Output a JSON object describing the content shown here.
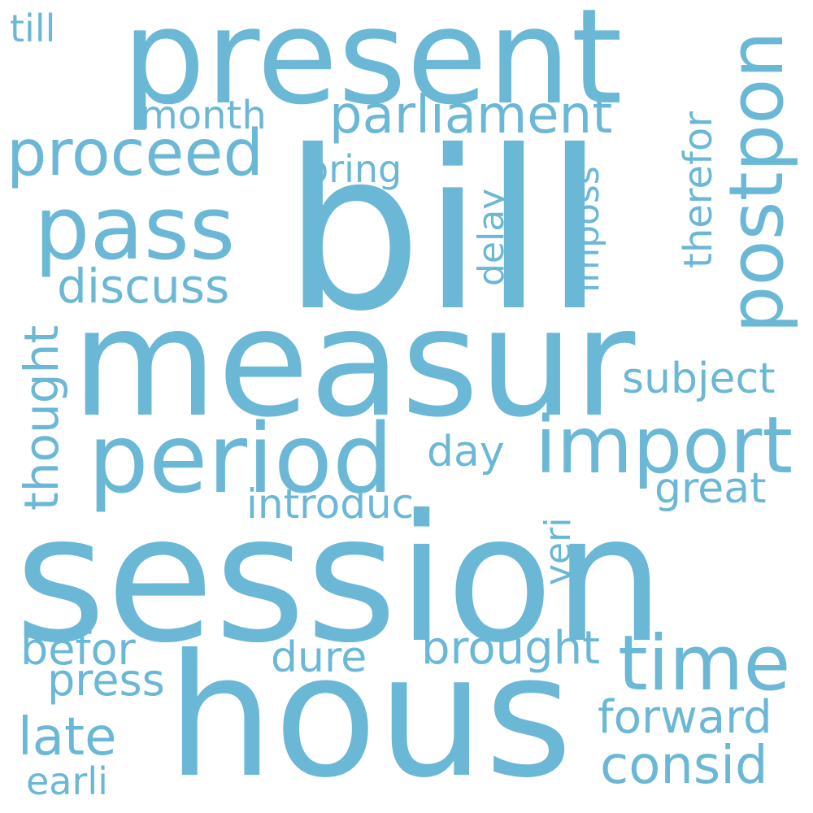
{
  "theme": {
    "word_color": "#6bb8d6",
    "background": "#ffffff"
  },
  "words": {
    "session": "session",
    "bill": "bill",
    "measur": "measur",
    "hous": "hous",
    "present": "present",
    "period": "period",
    "pass": "pass",
    "import": "import",
    "postpon": "postpon",
    "time": "time",
    "proceed": "proceed",
    "parliament": "parliament",
    "consid": "consid",
    "discuss": "discuss",
    "thought": "thought",
    "brought": "brought",
    "forward": "forward",
    "subject": "subject",
    "late": "late",
    "befor": "befor",
    "press": "press",
    "great": "great",
    "dure": "dure",
    "introduc": "introduc",
    "therefor": "therefor",
    "imposs": "imposs",
    "delay": "delay",
    "veri": "veri",
    "day": "day",
    "bring": "bring",
    "month": "month",
    "earli": "earli",
    "till": "till"
  }
}
